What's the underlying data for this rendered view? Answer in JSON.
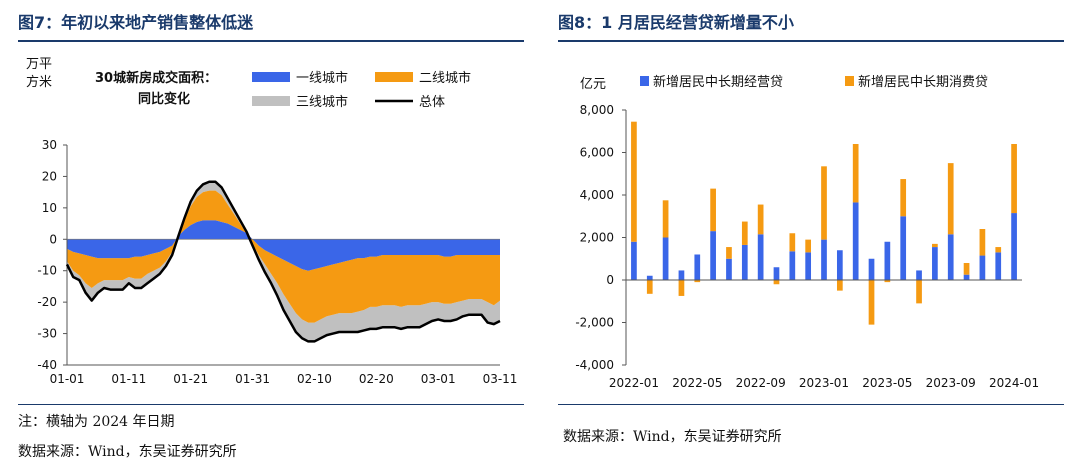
{
  "left_panel": {
    "title": "图7：年初以来地产销售整体低迷",
    "unit_line1": "万平",
    "unit_line2": "方米",
    "legend_title_line1": "30城新房成交面积：",
    "legend_title_line2": "同比变化",
    "note": "注：横轴为 2024 年日期",
    "source": "数据来源：Wind，东吴证券研究所"
  },
  "right_panel": {
    "title": "图8：1 月居民经营贷新增量不小",
    "unit": "亿元",
    "source": "数据来源：Wind，东吴证券研究所"
  },
  "colors": {
    "title": "#1a3a6b",
    "tier1": "#3a66e8",
    "tier2": "#f59a12",
    "tier3": "#c0c0c0",
    "total": "#000000",
    "business_loan": "#3a66e8",
    "consumer_loan": "#f59a12"
  },
  "chart_data": [
    {
      "type": "area",
      "title": "30城新房成交面积：同比变化",
      "ylabel": "万平方米",
      "ylim": [
        -40,
        30
      ],
      "yticks": [
        "-40",
        "-30",
        "-20",
        "-10",
        "0",
        "10",
        "20",
        "30"
      ],
      "xticks": [
        "01-01",
        "01-11",
        "01-21",
        "01-31",
        "02-10",
        "02-20",
        "03-01",
        "03-11"
      ],
      "series": [
        {
          "name": "一线城市",
          "values": [
            -3,
            -4,
            -4.5,
            -5,
            -5.5,
            -6,
            -6,
            -6,
            -6,
            -6,
            -6,
            -5.5,
            -5.5,
            -5,
            -4.5,
            -4,
            -3,
            -2,
            1,
            3,
            4.5,
            5.5,
            6,
            6,
            6,
            5.5,
            5,
            4,
            3,
            2,
            0,
            -2,
            -3.5,
            -4.5,
            -5.5,
            -6.5,
            -7.5,
            -8.5,
            -9.5,
            -10,
            -9.5,
            -9,
            -8.5,
            -8,
            -7.5,
            -7,
            -6.5,
            -6,
            -6,
            -5.5,
            -5.5,
            -5,
            -5,
            -5,
            -5,
            -5,
            -5,
            -5,
            -5,
            -5,
            -5,
            -5.5,
            -5.5,
            -5,
            -5,
            -5,
            -5,
            -5,
            -5,
            -5,
            -5
          ]
        },
        {
          "name": "二线城市",
          "values": [
            -4,
            -6,
            -7,
            -9,
            -10,
            -8,
            -7,
            -7,
            -7,
            -7,
            -6,
            -7,
            -7,
            -6,
            -5.5,
            -5,
            -4,
            -2,
            0,
            3,
            6,
            8,
            9,
            9.5,
            9.5,
            8.5,
            6,
            4,
            2,
            0,
            -1.5,
            -3,
            -4.5,
            -6.5,
            -8.5,
            -11,
            -13,
            -15,
            -16,
            -16.5,
            -17,
            -16.5,
            -16,
            -16,
            -16,
            -16.5,
            -17,
            -17,
            -16.5,
            -16,
            -16,
            -16,
            -16,
            -16,
            -16.5,
            -16,
            -16,
            -16,
            -15.5,
            -15,
            -15,
            -15,
            -15,
            -15,
            -14.5,
            -14,
            -14,
            -14,
            -15,
            -16,
            -14.5
          ]
        },
        {
          "name": "三线城市",
          "values": [
            -1,
            -2,
            -1.5,
            -3,
            -4,
            -3,
            -2.5,
            -3,
            -3,
            -3,
            -2,
            -3,
            -3,
            -3,
            -2.5,
            -2,
            -1.5,
            -1,
            0,
            0.8,
            1.5,
            2,
            2.5,
            2.8,
            2.8,
            2.5,
            2,
            1.5,
            1,
            0.5,
            -0.5,
            -1.5,
            -2.5,
            -3,
            -4,
            -5,
            -5.5,
            -6,
            -6,
            -6,
            -6,
            -6,
            -6,
            -6,
            -6,
            -6,
            -6,
            -6.5,
            -6.5,
            -7,
            -7,
            -7,
            -7,
            -7,
            -7,
            -7,
            -7,
            -7,
            -6.5,
            -6,
            -5.5,
            -5.5,
            -5.5,
            -5.5,
            -5,
            -5,
            -5,
            -5,
            -6.5,
            -6,
            -6.5
          ]
        },
        {
          "name": "总体",
          "values": [
            -8,
            -12,
            -13,
            -17,
            -19.5,
            -17,
            -15.5,
            -16,
            -16,
            -16,
            -14,
            -15.5,
            -15.5,
            -14,
            -12.5,
            -11,
            -8.5,
            -5,
            1,
            6.8,
            12,
            15.5,
            17.5,
            18.3,
            18.3,
            16.5,
            13,
            9.5,
            6,
            2.5,
            -2,
            -6.5,
            -10.5,
            -14,
            -18,
            -22.5,
            -26,
            -29.5,
            -31.5,
            -32.5,
            -32.5,
            -31.5,
            -30.5,
            -30,
            -29.5,
            -29.5,
            -29.5,
            -29.5,
            -29,
            -28.5,
            -28.5,
            -28,
            -28,
            -28,
            -28.5,
            -28,
            -28,
            -28,
            -27,
            -26,
            -25.5,
            -26,
            -26,
            -25.5,
            -24.5,
            -24,
            -24,
            -24,
            -26.5,
            -27,
            -26
          ]
        }
      ]
    },
    {
      "type": "bar",
      "title": "",
      "ylabel": "亿元",
      "ylim": [
        -4000,
        8000
      ],
      "yticks": [
        "-4,000",
        "-2,000",
        "0",
        "2,000",
        "4,000",
        "6,000",
        "8,000"
      ],
      "xticks": [
        "2022-01",
        "2022-05",
        "2022-09",
        "2023-01",
        "2023-05",
        "2023-09",
        "2024-01"
      ],
      "categories": [
        "2022-01",
        "2022-02",
        "2022-03",
        "2022-04",
        "2022-05",
        "2022-06",
        "2022-07",
        "2022-08",
        "2022-09",
        "2022-10",
        "2022-11",
        "2022-12",
        "2023-01",
        "2023-02",
        "2023-03",
        "2023-04",
        "2023-05",
        "2023-06",
        "2023-07",
        "2023-08",
        "2023-09",
        "2023-10",
        "2023-11",
        "2023-12",
        "2024-01"
      ],
      "series": [
        {
          "name": "新增居民中长期经营贷",
          "values": [
            1800,
            200,
            2000,
            450,
            1200,
            2300,
            1000,
            1650,
            2150,
            600,
            1350,
            1300,
            1900,
            1400,
            3650,
            1000,
            1800,
            3000,
            450,
            1550,
            2150,
            250,
            1150,
            1300,
            3150
          ]
        },
        {
          "name": "新增居民中长期消费贷",
          "values": [
            5650,
            -650,
            1750,
            -750,
            -100,
            2000,
            550,
            1100,
            1400,
            -200,
            850,
            600,
            3450,
            -500,
            2750,
            -2100,
            -100,
            1750,
            -1100,
            150,
            3350,
            550,
            1250,
            250,
            3250
          ]
        }
      ]
    }
  ]
}
